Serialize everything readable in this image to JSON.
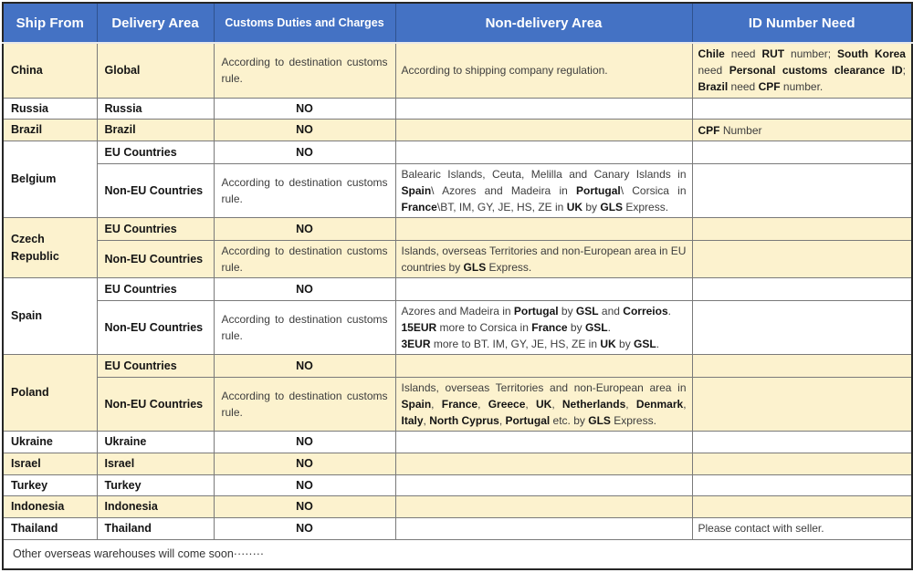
{
  "header": {
    "columns": [
      "Ship From",
      "Delivery Area",
      "Customs Duties and Charges",
      "Non-delivery Area",
      "ID Number Need"
    ]
  },
  "colors": {
    "header_bg": "#4472C4",
    "header_text": "#FFFFFF",
    "row_tint": "#FCF2CE",
    "border_outer": "#262626",
    "border_inner": "#7A7A7A"
  },
  "labels": {
    "no": "NO"
  },
  "groups": [
    {
      "ship_from": "China",
      "rows": [
        {
          "area": "Global",
          "customs": [
            {
              "t": "According to destination customs rule."
            }
          ],
          "nondelivery": [
            {
              "t": "According to shipping company regulation."
            }
          ],
          "id": [
            {
              "t": "Chile",
              "b": true
            },
            {
              "t": " need "
            },
            {
              "t": "RUT",
              "b": true
            },
            {
              "t": " number; "
            },
            {
              "t": "South Korea",
              "b": true
            },
            {
              "t": " need "
            },
            {
              "t": "Personal customs clearance ID",
              "b": true
            },
            {
              "t": "; "
            },
            {
              "t": "Brazil",
              "b": true
            },
            {
              "t": " need "
            },
            {
              "t": "CPF",
              "b": true
            },
            {
              "t": " number."
            }
          ]
        }
      ]
    },
    {
      "ship_from": "Russia",
      "rows": [
        {
          "area": "Russia",
          "customs": [
            {
              "t": "NO",
              "b": true
            }
          ]
        }
      ]
    },
    {
      "ship_from": "Brazil",
      "rows": [
        {
          "area": "Brazil",
          "customs": [
            {
              "t": "NO",
              "b": true
            }
          ],
          "id": [
            {
              "t": "CPF",
              "b": true
            },
            {
              "t": " Number"
            }
          ]
        }
      ]
    },
    {
      "ship_from": "Belgium",
      "rows": [
        {
          "area": "EU Countries",
          "customs": [
            {
              "t": "NO",
              "b": true
            }
          ]
        },
        {
          "area": "Non-EU Countries",
          "customs": [
            {
              "t": "According to destination customs rule."
            }
          ],
          "nondelivery": [
            {
              "t": "Balearic Islands, Ceuta, Melilla and Canary Islands in "
            },
            {
              "t": "Spain",
              "b": true
            },
            {
              "t": "\\ Azores and Madeira in "
            },
            {
              "t": "Portugal",
              "b": true
            },
            {
              "t": "\\ Corsica in "
            },
            {
              "t": "France",
              "b": true
            },
            {
              "t": "\\BT, IM, GY, JE, HS, ZE in "
            },
            {
              "t": "UK",
              "b": true
            },
            {
              "t": " by "
            },
            {
              "t": "GLS",
              "b": true
            },
            {
              "t": " Express."
            }
          ]
        }
      ]
    },
    {
      "ship_from": "Czech Republic",
      "rows": [
        {
          "area": "EU Countries",
          "customs": [
            {
              "t": "NO",
              "b": true
            }
          ]
        },
        {
          "area": "Non-EU Countries",
          "customs": [
            {
              "t": "According to destination customs rule."
            }
          ],
          "nondelivery": [
            {
              "t": "Islands, overseas Territories and non-European area in EU countries by "
            },
            {
              "t": "GLS",
              "b": true
            },
            {
              "t": " Express."
            }
          ]
        }
      ]
    },
    {
      "ship_from": "Spain",
      "rows": [
        {
          "area": "EU Countries",
          "customs": [
            {
              "t": "NO",
              "b": true
            }
          ]
        },
        {
          "area": "Non-EU Countries",
          "customs": [
            {
              "t": "According to destination customs rule."
            }
          ],
          "nondelivery": [
            {
              "t": "Azores and Madeira in "
            },
            {
              "t": "Portugal",
              "b": true
            },
            {
              "t": " by "
            },
            {
              "t": "GSL",
              "b": true
            },
            {
              "t": " and "
            },
            {
              "t": "Correios",
              "b": true
            },
            {
              "t": "."
            },
            {
              "br": true
            },
            {
              "t": "15EUR",
              "b": true
            },
            {
              "t": " more to Corsica in "
            },
            {
              "t": "France",
              "b": true
            },
            {
              "t": " by "
            },
            {
              "t": "GSL",
              "b": true
            },
            {
              "t": "."
            },
            {
              "br": true
            },
            {
              "t": "3EUR",
              "b": true
            },
            {
              "t": " more to BT. IM, GY, JE, HS, ZE in "
            },
            {
              "t": "UK",
              "b": true
            },
            {
              "t": " by "
            },
            {
              "t": "GSL",
              "b": true
            },
            {
              "t": "."
            }
          ]
        }
      ]
    },
    {
      "ship_from": "Poland",
      "rows": [
        {
          "area": "EU Countries",
          "customs": [
            {
              "t": "NO",
              "b": true
            }
          ]
        },
        {
          "area": "Non-EU Countries",
          "customs": [
            {
              "t": "According to destination customs rule."
            }
          ],
          "nondelivery": [
            {
              "t": "Islands, overseas Territories and non-European area in "
            },
            {
              "t": "Spain",
              "b": true
            },
            {
              "t": ", "
            },
            {
              "t": "France",
              "b": true
            },
            {
              "t": ", "
            },
            {
              "t": "Greece",
              "b": true
            },
            {
              "t": ", "
            },
            {
              "t": "UK",
              "b": true
            },
            {
              "t": ", "
            },
            {
              "t": "Netherlands",
              "b": true
            },
            {
              "t": ", "
            },
            {
              "t": "Denmark",
              "b": true
            },
            {
              "t": ", "
            },
            {
              "t": "Italy",
              "b": true
            },
            {
              "t": ", "
            },
            {
              "t": "North Cyprus",
              "b": true
            },
            {
              "t": ", "
            },
            {
              "t": "Portugal",
              "b": true
            },
            {
              "t": " etc. by "
            },
            {
              "t": "GLS",
              "b": true
            },
            {
              "t": " Express."
            }
          ]
        }
      ]
    },
    {
      "ship_from": "Ukraine",
      "rows": [
        {
          "area": "Ukraine",
          "customs": [
            {
              "t": "NO",
              "b": true
            }
          ]
        }
      ]
    },
    {
      "ship_from": "Israel",
      "rows": [
        {
          "area": "Israel",
          "customs": [
            {
              "t": "NO",
              "b": true
            }
          ]
        }
      ]
    },
    {
      "ship_from": "Turkey",
      "rows": [
        {
          "area": "Turkey",
          "customs": [
            {
              "t": "NO",
              "b": true
            }
          ]
        }
      ]
    },
    {
      "ship_from": "Indonesia",
      "rows": [
        {
          "area": "Indonesia",
          "customs": [
            {
              "t": "NO",
              "b": true
            }
          ]
        }
      ]
    },
    {
      "ship_from": "Thailand",
      "rows": [
        {
          "area": "Thailand",
          "customs": [
            {
              "t": "NO",
              "b": true
            }
          ],
          "id": [
            {
              "t": "Please contact with seller."
            }
          ]
        }
      ]
    }
  ],
  "footer": {
    "text": "Other overseas warehouses will come soon········"
  }
}
